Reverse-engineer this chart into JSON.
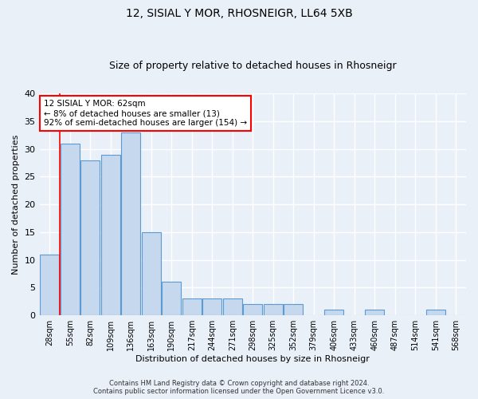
{
  "title": "12, SISIAL Y MOR, RHOSNEIGR, LL64 5XB",
  "subtitle": "Size of property relative to detached houses in Rhosneigr",
  "xlabel": "Distribution of detached houses by size in Rhosneigr",
  "ylabel": "Number of detached properties",
  "bar_color": "#c5d8ed",
  "bar_edge_color": "#5b9bd5",
  "categories": [
    "28sqm",
    "55sqm",
    "82sqm",
    "109sqm",
    "136sqm",
    "163sqm",
    "190sqm",
    "217sqm",
    "244sqm",
    "271sqm",
    "298sqm",
    "325sqm",
    "352sqm",
    "379sqm",
    "406sqm",
    "433sqm",
    "460sqm",
    "487sqm",
    "514sqm",
    "541sqm",
    "568sqm"
  ],
  "values": [
    11,
    31,
    28,
    29,
    33,
    15,
    6,
    3,
    3,
    3,
    2,
    2,
    2,
    0,
    1,
    0,
    1,
    0,
    0,
    1,
    0
  ],
  "ylim": [
    0,
    40
  ],
  "yticks": [
    0,
    5,
    10,
    15,
    20,
    25,
    30,
    35,
    40
  ],
  "vline_x_index": 1,
  "annotation_text": "12 SISIAL Y MOR: 62sqm\n← 8% of detached houses are smaller (13)\n92% of semi-detached houses are larger (154) →",
  "annotation_box_color": "white",
  "annotation_box_edge": "red",
  "footer_line1": "Contains HM Land Registry data © Crown copyright and database right 2024.",
  "footer_line2": "Contains public sector information licensed under the Open Government Licence v3.0.",
  "background_color": "#eaf0f8",
  "grid_color": "white"
}
